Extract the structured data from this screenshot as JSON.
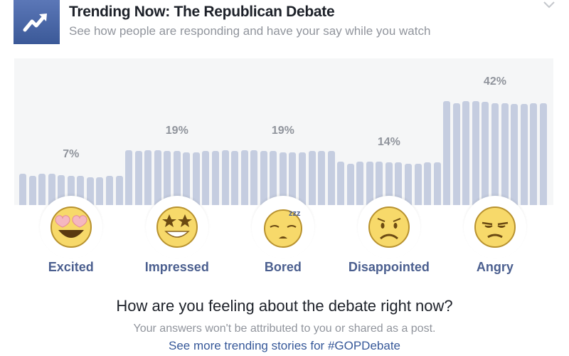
{
  "header": {
    "title": "Trending Now: The Republican Debate",
    "subtitle": "See how people are responding and have your say while you watch",
    "icon": "trending-arrow-icon",
    "menu_icon": "chevron-down-icon"
  },
  "chart_data": {
    "type": "bar",
    "title": "",
    "categories": [
      "Excited",
      "Impressed",
      "Bored",
      "Disappointed",
      "Angry"
    ],
    "values": [
      7,
      19,
      19,
      14,
      42
    ],
    "value_labels": [
      "7%",
      "19%",
      "19%",
      "14%",
      "42%"
    ],
    "trend_bars_per_category": 11,
    "trend_bar_values": [
      [
        30,
        28,
        30,
        30,
        29,
        28,
        28,
        27,
        27,
        28,
        28
      ],
      [
        53,
        52,
        53,
        53,
        52,
        52,
        51,
        51,
        52,
        52,
        53
      ],
      [
        52,
        53,
        53,
        52,
        52,
        51,
        51,
        51,
        52,
        52,
        52
      ],
      [
        42,
        40,
        42,
        42,
        42,
        41,
        41,
        40,
        40,
        41,
        41
      ],
      [
        100,
        98,
        100,
        100,
        99,
        98,
        98,
        97,
        97,
        98,
        98
      ]
    ],
    "ylim": [
      0,
      100
    ],
    "bar_color": "#c5cde0"
  },
  "options": [
    {
      "label": "Excited",
      "icon": "heart-eyes-emoji-icon"
    },
    {
      "label": "Impressed",
      "icon": "star-eyes-emoji-icon"
    },
    {
      "label": "Bored",
      "icon": "sleepy-emoji-icon"
    },
    {
      "label": "Disappointed",
      "icon": "disappointed-emoji-icon"
    },
    {
      "label": "Angry",
      "icon": "angry-emoji-icon"
    }
  ],
  "footer": {
    "question": "How are you feeling about the debate right now?",
    "note": "Your answers won't be attributed to you or shared as a post.",
    "link": "See more trending stories for #GOPDebate"
  }
}
